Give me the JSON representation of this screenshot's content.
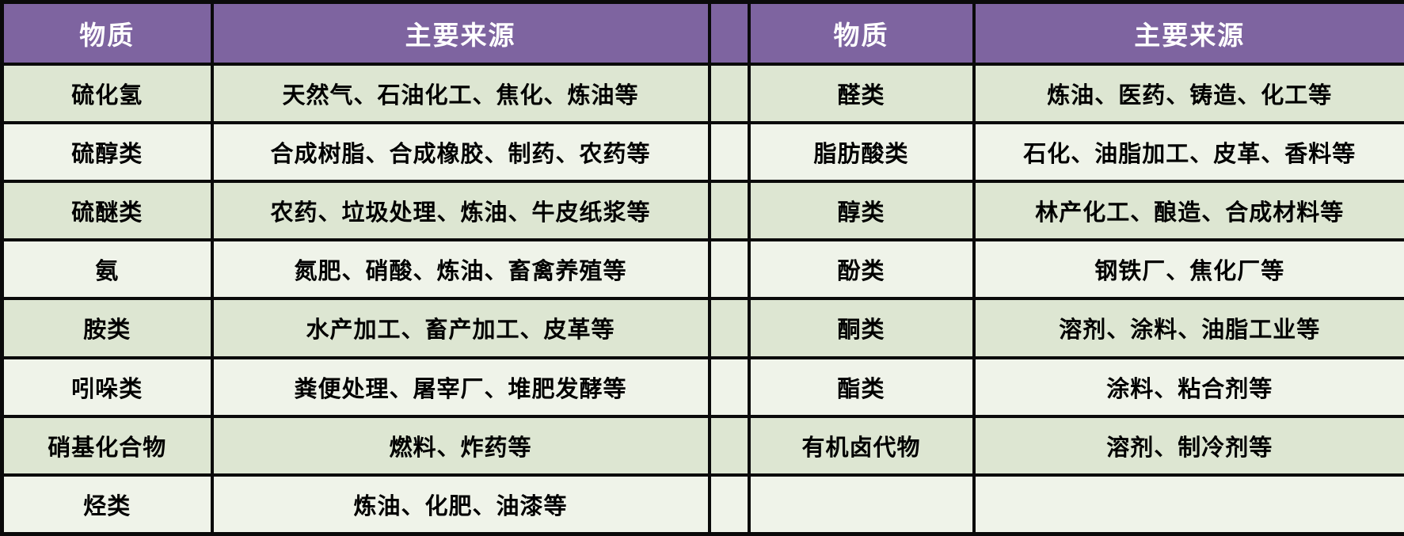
{
  "colors": {
    "header_bg": "#7e64a0",
    "row_odd_bg": "#dde6d2",
    "row_even_bg": "#eff3e9",
    "border": "#0a0a0a",
    "header_text": "#ffffff",
    "body_text": "#000000"
  },
  "table": {
    "headers": {
      "substance": "物质",
      "source": "主要来源"
    },
    "left_rows": [
      {
        "substance": "硫化氢",
        "source": "天然气、石油化工、焦化、炼油等"
      },
      {
        "substance": "硫醇类",
        "source": "合成树脂、合成橡胶、制药、农药等"
      },
      {
        "substance": "硫醚类",
        "source": "农药、垃圾处理、炼油、牛皮纸浆等"
      },
      {
        "substance": "氨",
        "source": "氮肥、硝酸、炼油、畜禽养殖等"
      },
      {
        "substance": "胺类",
        "source": "水产加工、畜产加工、皮革等"
      },
      {
        "substance": "吲哚类",
        "source": "粪便处理、屠宰厂、堆肥发酵等"
      },
      {
        "substance": "硝基化合物",
        "source": "燃料、炸药等"
      },
      {
        "substance": "烃类",
        "source": "炼油、化肥、油漆等"
      }
    ],
    "right_rows": [
      {
        "substance": "醛类",
        "source": "炼油、医药、铸造、化工等"
      },
      {
        "substance": "脂肪酸类",
        "source": "石化、油脂加工、皮革、香料等"
      },
      {
        "substance": "醇类",
        "source": "林产化工、酿造、合成材料等"
      },
      {
        "substance": "酚类",
        "source": "钢铁厂、焦化厂等"
      },
      {
        "substance": "酮类",
        "source": "溶剂、涂料、油脂工业等"
      },
      {
        "substance": "酯类",
        "source": "涂料、粘合剂等"
      },
      {
        "substance": "有机卤代物",
        "source": "溶剂、制冷剂等"
      },
      {
        "substance": "",
        "source": ""
      }
    ]
  },
  "chart_data": {
    "type": "table",
    "title": "",
    "columns": [
      "物质",
      "主要来源",
      "物质",
      "主要来源"
    ],
    "rows": [
      [
        "硫化氢",
        "天然气、石油化工、焦化、炼油等",
        "醛类",
        "炼油、医药、铸造、化工等"
      ],
      [
        "硫醇类",
        "合成树脂、合成橡胶、制药、农药等",
        "脂肪酸类",
        "石化、油脂加工、皮革、香料等"
      ],
      [
        "硫醚类",
        "农药、垃圾处理、炼油、牛皮纸浆等",
        "醇类",
        "林产化工、酿造、合成材料等"
      ],
      [
        "氨",
        "氮肥、硝酸、炼油、畜禽养殖等",
        "酚类",
        "钢铁厂、焦化厂等"
      ],
      [
        "胺类",
        "水产加工、畜产加工、皮革等",
        "酮类",
        "溶剂、涂料、油脂工业等"
      ],
      [
        "吲哚类",
        "粪便处理、屠宰厂、堆肥发酵等",
        "酯类",
        "涂料、粘合剂等"
      ],
      [
        "硝基化合物",
        "燃料、炸药等",
        "有机卤代物",
        "溶剂、制冷剂等"
      ],
      [
        "烃类",
        "炼油、化肥、油漆等",
        "",
        ""
      ]
    ]
  }
}
